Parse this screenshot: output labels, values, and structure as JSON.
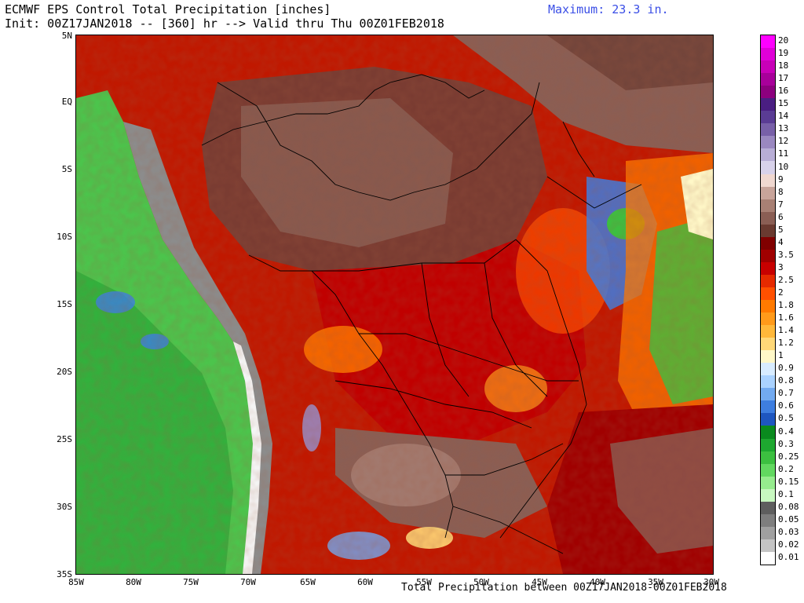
{
  "header": {
    "title": "ECMWF EPS Control Total Precipitation [inches]",
    "init_line": "Init: 00Z17JAN2018 -- [360] hr --> Valid thru Thu 00Z01FEB2018",
    "maximum": "Maximum: 23.3 in."
  },
  "footer": {
    "text": "Total Precipitation between 00Z17JAN2018-00Z01FEB2018"
  },
  "axes": {
    "latitudes": [
      "5N",
      "EQ",
      "5S",
      "10S",
      "15S",
      "20S",
      "25S",
      "30S",
      "35S"
    ],
    "longitudes": [
      "85W",
      "80W",
      "75W",
      "70W",
      "65W",
      "60W",
      "55W",
      "50W",
      "45W",
      "40W",
      "35W",
      "30W"
    ]
  },
  "legend": {
    "levels": [
      {
        "label": "20",
        "color": "#ff00ff"
      },
      {
        "label": "19",
        "color": "#e000d8"
      },
      {
        "label": "18",
        "color": "#c800b8"
      },
      {
        "label": "17",
        "color": "#a8009a"
      },
      {
        "label": "16",
        "color": "#8c007e"
      },
      {
        "label": "15",
        "color": "#4a1e82"
      },
      {
        "label": "14",
        "color": "#5a3c94"
      },
      {
        "label": "13",
        "color": "#7860a8"
      },
      {
        "label": "12",
        "color": "#9a88c0"
      },
      {
        "label": "11",
        "color": "#b8aed6"
      },
      {
        "label": "10",
        "color": "#d8d2ea"
      },
      {
        "label": "9",
        "color": "#f0d8d0"
      },
      {
        "label": "8",
        "color": "#c8a49a"
      },
      {
        "label": "7",
        "color": "#a88074"
      },
      {
        "label": "6",
        "color": "#8a5e54"
      },
      {
        "label": "5",
        "color": "#6a3a30"
      },
      {
        "label": "4",
        "color": "#800000"
      },
      {
        "label": "3.5",
        "color": "#a00000"
      },
      {
        "label": "3",
        "color": "#c80000"
      },
      {
        "label": "2.5",
        "color": "#e62a00"
      },
      {
        "label": "2",
        "color": "#ff5000"
      },
      {
        "label": "1.8",
        "color": "#ff7a00"
      },
      {
        "label": "1.6",
        "color": "#ff9a1a"
      },
      {
        "label": "1.4",
        "color": "#ffb83a"
      },
      {
        "label": "1.2",
        "color": "#ffd878"
      },
      {
        "label": "1",
        "color": "#fff8c8"
      },
      {
        "label": "0.9",
        "color": "#d8ecff"
      },
      {
        "label": "0.8",
        "color": "#aad2ff"
      },
      {
        "label": "0.7",
        "color": "#72aaf0"
      },
      {
        "label": "0.6",
        "color": "#3e7ee0"
      },
      {
        "label": "0.5",
        "color": "#1e56c0"
      },
      {
        "label": "0.4",
        "color": "#0a8a1e"
      },
      {
        "label": "0.3",
        "color": "#1ea830"
      },
      {
        "label": "0.25",
        "color": "#3cc040"
      },
      {
        "label": "0.2",
        "color": "#62d860"
      },
      {
        "label": "0.15",
        "color": "#96ec8e"
      },
      {
        "label": "0.1",
        "color": "#c8f8c0"
      },
      {
        "label": "0.08",
        "color": "#5e5e5e"
      },
      {
        "label": "0.05",
        "color": "#7e7e7e"
      },
      {
        "label": "0.03",
        "color": "#a0a0a0"
      },
      {
        "label": "0.02",
        "color": "#c4c4c4"
      },
      {
        "label": "0.01",
        "color": "#ffffff"
      }
    ]
  }
}
